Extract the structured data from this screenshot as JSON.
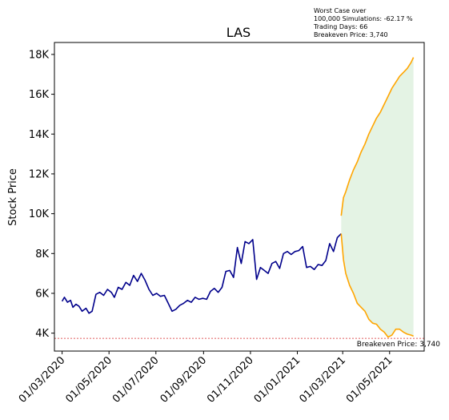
{
  "chart_data": {
    "type": "line",
    "title": "LAS",
    "xlabel": "",
    "ylabel": "Stock Price",
    "x_ticks": [
      "01/03/2020",
      "01/05/2020",
      "01/07/2020",
      "01/09/2020",
      "01/11/2020",
      "01/01/2021",
      "01/03/2021",
      "01/05/2021"
    ],
    "y_ticks": [
      "4K",
      "6K",
      "8K",
      "10K",
      "12K",
      "14K",
      "16K",
      "18K"
    ],
    "y_tick_values": [
      4000,
      6000,
      8000,
      10000,
      12000,
      14000,
      16000,
      18000
    ],
    "xlim": [
      "2020-02-20",
      "2021-06-15"
    ],
    "ylim": [
      3100,
      18600
    ],
    "grid": false,
    "annotation_lines": [
      "Worst Case over",
      "100,000 Simulations: -62.17 %",
      "Trading Days: 66",
      "Breakeven Price: 3,740"
    ],
    "breakeven": {
      "value": 3740,
      "label": "Breakeven Price: 3,740",
      "color": "#d62728"
    },
    "colors": {
      "history": "#00008b",
      "projection": "#ffa500",
      "band_fill": "#2ca02c"
    },
    "series": [
      {
        "name": "",
        "color": "#00008b",
        "x": [
          "2020-03-01",
          "2020-03-04",
          "2020-03-08",
          "2020-03-12",
          "2020-03-15",
          "2020-03-19",
          "2020-03-23",
          "2020-03-27",
          "2020-04-01",
          "2020-04-05",
          "2020-04-09",
          "2020-04-14",
          "2020-04-19",
          "2020-04-24",
          "2020-04-29",
          "2020-05-04",
          "2020-05-08",
          "2020-05-13",
          "2020-05-18",
          "2020-05-23",
          "2020-05-28",
          "2020-06-02",
          "2020-06-07",
          "2020-06-12",
          "2020-06-17",
          "2020-06-22",
          "2020-06-27",
          "2020-07-02",
          "2020-07-07",
          "2020-07-12",
          "2020-07-17",
          "2020-07-22",
          "2020-07-27",
          "2020-08-01",
          "2020-08-06",
          "2020-08-11",
          "2020-08-16",
          "2020-08-21",
          "2020-08-26",
          "2020-08-31",
          "2020-09-05",
          "2020-09-10",
          "2020-09-15",
          "2020-09-20",
          "2020-09-25",
          "2020-09-30",
          "2020-10-05",
          "2020-10-10",
          "2020-10-15",
          "2020-10-20",
          "2020-10-25",
          "2020-10-30",
          "2020-11-04",
          "2020-11-09",
          "2020-11-14",
          "2020-11-19",
          "2020-11-24",
          "2020-11-29",
          "2020-12-04",
          "2020-12-09",
          "2020-12-14",
          "2020-12-19",
          "2020-12-24",
          "2020-12-29",
          "2021-01-03",
          "2021-01-08",
          "2021-01-13",
          "2021-01-18",
          "2021-01-23",
          "2021-01-28",
          "2021-02-02",
          "2021-02-07",
          "2021-02-12",
          "2021-02-17",
          "2021-02-22",
          "2021-02-27"
        ],
        "y": [
          5600,
          5800,
          5550,
          5650,
          5300,
          5450,
          5350,
          5100,
          5250,
          5000,
          5100,
          5950,
          6050,
          5900,
          6200,
          6050,
          5800,
          6300,
          6200,
          6550,
          6400,
          6900,
          6600,
          7000,
          6650,
          6200,
          5900,
          6000,
          5850,
          5900,
          5500,
          5100,
          5200,
          5400,
          5500,
          5650,
          5550,
          5800,
          5700,
          5750,
          5700,
          6100,
          6250,
          6050,
          6300,
          7100,
          7150,
          6800,
          8300,
          7500,
          8600,
          8500,
          8700,
          6700,
          7300,
          7150,
          7000,
          7500,
          7600,
          7250,
          8000,
          8100,
          7950,
          8100,
          8150,
          8350,
          7300,
          7350,
          7200,
          7450,
          7400,
          7650,
          8500,
          8100,
          8800,
          9000
        ]
      },
      {
        "name": "",
        "color": "#ffa500",
        "x": [
          "2021-02-27",
          "2021-03-02",
          "2021-03-05",
          "2021-03-10",
          "2021-03-15",
          "2021-03-20",
          "2021-03-25",
          "2021-03-30",
          "2021-04-04",
          "2021-04-09",
          "2021-04-14",
          "2021-04-19",
          "2021-04-24",
          "2021-04-29",
          "2021-05-04",
          "2021-05-09",
          "2021-05-14",
          "2021-05-19",
          "2021-05-24",
          "2021-05-29",
          "2021-06-01"
        ],
        "y": [
          9900,
          10800,
          11100,
          11700,
          12200,
          12600,
          13100,
          13500,
          14000,
          14400,
          14800,
          15100,
          15500,
          15900,
          16300,
          16600,
          16900,
          17100,
          17300,
          17600,
          17850
        ]
      },
      {
        "name": "",
        "color": "#ffa500",
        "x": [
          "2021-02-27",
          "2021-03-02",
          "2021-03-05",
          "2021-03-10",
          "2021-03-15",
          "2021-03-20",
          "2021-03-25",
          "2021-03-30",
          "2021-04-04",
          "2021-04-09",
          "2021-04-14",
          "2021-04-19",
          "2021-04-24",
          "2021-04-29",
          "2021-05-04",
          "2021-05-09",
          "2021-05-14",
          "2021-05-19",
          "2021-05-24",
          "2021-05-29",
          "2021-06-01"
        ],
        "y": [
          9000,
          7700,
          7000,
          6400,
          6000,
          5500,
          5300,
          5100,
          4700,
          4500,
          4450,
          4200,
          4050,
          3800,
          3900,
          4200,
          4200,
          4050,
          3950,
          3900,
          3850
        ]
      }
    ]
  }
}
